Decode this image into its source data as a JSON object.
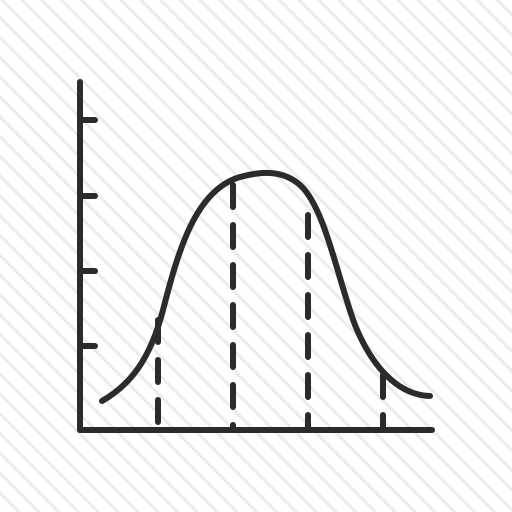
{
  "icon": {
    "name": "bell-curve-chart-icon",
    "stroke_color": "#2b2b2b",
    "background_color": "#ffffff",
    "hatch_color": "#ececec",
    "tick_count_y": 4,
    "tick_count_x": 4,
    "dashed_line_count": 4
  }
}
